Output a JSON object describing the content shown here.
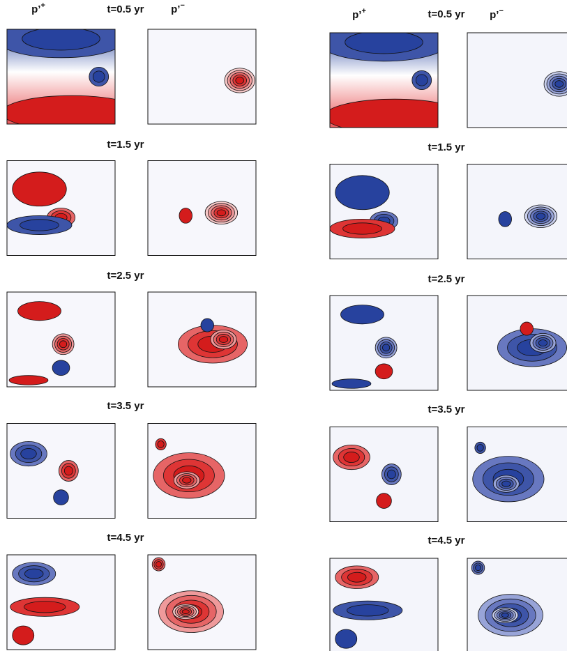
{
  "figures": [
    {
      "labels": [
        {
          "base": "p’",
          "sup": "+"
        },
        {
          "base": "p’",
          "sup": "−"
        }
      ],
      "times": [
        "t=0.5 yr",
        "t=1.5 yr",
        "t=2.5 yr",
        "t=3.5 yr",
        "t=4.5 yr"
      ]
    },
    {
      "labels": [
        {
          "base": "p’",
          "sup": "+"
        },
        {
          "base": "p’",
          "sup": "−"
        }
      ],
      "times": [
        "t=0.5 yr",
        "t=1.5 yr",
        "t=2.5 yr",
        "t=3.5 yr",
        "t=4.5 yr"
      ]
    }
  ]
}
